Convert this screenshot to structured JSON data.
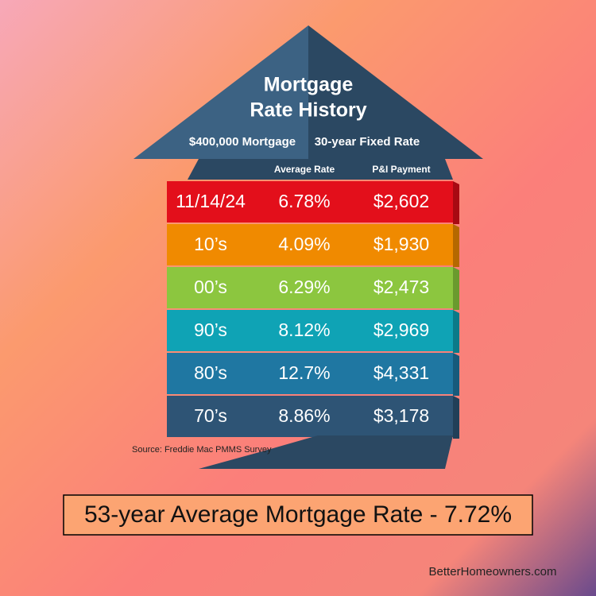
{
  "header": {
    "title_lines": [
      "Mortgage",
      "Rate History"
    ],
    "subtitle": [
      "$400,000 Mortgage",
      "30-year Fixed Rate"
    ]
  },
  "table": {
    "columns": [
      "Average Rate",
      "P&I Payment"
    ],
    "rows": [
      [
        "11/14/24",
        "6.78%",
        "$2,602"
      ],
      [
        "10’s",
        "4.09%",
        "$1,930"
      ],
      [
        "00’s",
        "6.29%",
        "$2,473"
      ],
      [
        "90’s",
        "8.12%",
        "$2,969"
      ],
      [
        "80’s",
        "12.7%",
        "$4,331"
      ],
      [
        "70’s",
        "8.86%",
        "$3,178"
      ]
    ]
  },
  "source": "Source: Freddie Mac PMMS Survey",
  "summary": "53-year Average Mortgage Rate - 7.72%",
  "website": "BetterHomeowners.com"
}
